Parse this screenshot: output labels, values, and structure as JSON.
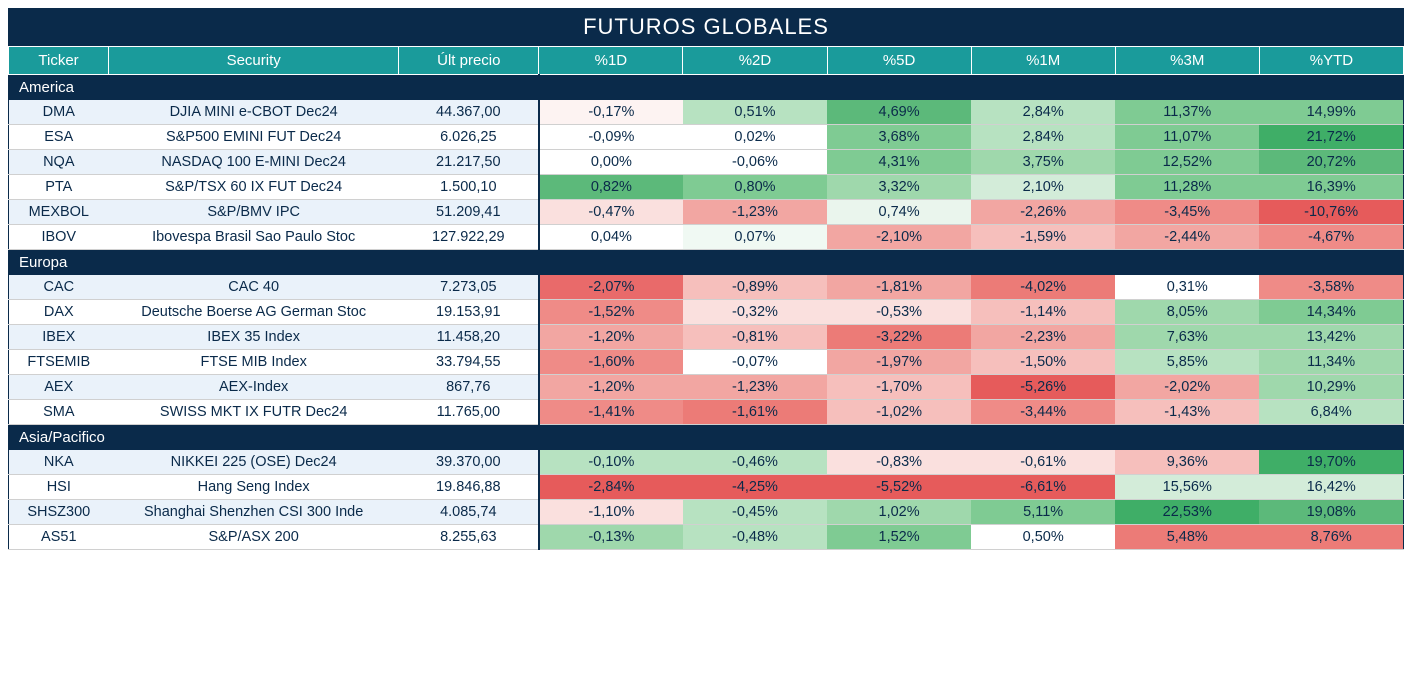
{
  "title": "FUTUROS GLOBALES",
  "headers": [
    "Ticker",
    "Security",
    "Últ precio",
    "%1D",
    "%2D",
    "%5D",
    "%1M",
    "%3M",
    "%YTD"
  ],
  "colors": {
    "title_bg": "#0a2a4a",
    "header_bg": "#1a9b9b",
    "alt_row_bg": "#eaf2fa",
    "text": "#0a2a4a",
    "heatmap": {
      "neg_strong": "#e96a6a",
      "neg_mid": "#f2a6a2",
      "neg_light": "#fae0de",
      "neg_vlight": "#fdf3f2",
      "neutral": "#ffffff",
      "pos_vlight": "#f0f9f3",
      "pos_light": "#d3ecd9",
      "pos_mid": "#9fd8ac",
      "pos_strong": "#5cb97a",
      "pos_vstrong": "#3fae67"
    }
  },
  "sections": [
    {
      "name": "America",
      "rows": [
        {
          "ticker": "DMA",
          "security": "DJIA MINI e-CBOT  Dec24",
          "price": "44.367,00",
          "pcts": [
            {
              "v": "-0,17%",
              "c": "#fdf3f2"
            },
            {
              "v": "0,51%",
              "c": "#b7e2c1"
            },
            {
              "v": "4,69%",
              "c": "#5cb97a"
            },
            {
              "v": "2,84%",
              "c": "#b7e2c1"
            },
            {
              "v": "11,37%",
              "c": "#7fcb93"
            },
            {
              "v": "14,99%",
              "c": "#7fcb93"
            }
          ]
        },
        {
          "ticker": "ESA",
          "security": "S&P500 EMINI FUT  Dec24",
          "price": "6.026,25",
          "pcts": [
            {
              "v": "-0,09%",
              "c": "#ffffff"
            },
            {
              "v": "0,02%",
              "c": "#ffffff"
            },
            {
              "v": "3,68%",
              "c": "#7fcb93"
            },
            {
              "v": "2,84%",
              "c": "#b7e2c1"
            },
            {
              "v": "11,07%",
              "c": "#7fcb93"
            },
            {
              "v": "21,72%",
              "c": "#3fae67"
            }
          ]
        },
        {
          "ticker": "NQA",
          "security": "NASDAQ 100 E-MINI Dec24",
          "price": "21.217,50",
          "pcts": [
            {
              "v": "0,00%",
              "c": "#ffffff"
            },
            {
              "v": "-0,06%",
              "c": "#ffffff"
            },
            {
              "v": "4,31%",
              "c": "#7fcb93"
            },
            {
              "v": "3,75%",
              "c": "#9fd8ac"
            },
            {
              "v": "12,52%",
              "c": "#7fcb93"
            },
            {
              "v": "20,72%",
              "c": "#5cb97a"
            }
          ]
        },
        {
          "ticker": "PTA",
          "security": "S&P/TSX 60 IX FUT Dec24",
          "price": "1.500,10",
          "pcts": [
            {
              "v": "0,82%",
              "c": "#5cb97a"
            },
            {
              "v": "0,80%",
              "c": "#7fcb93"
            },
            {
              "v": "3,32%",
              "c": "#9fd8ac"
            },
            {
              "v": "2,10%",
              "c": "#d3ecd9"
            },
            {
              "v": "11,28%",
              "c": "#7fcb93"
            },
            {
              "v": "16,39%",
              "c": "#7fcb93"
            }
          ]
        },
        {
          "ticker": "MEXBOL",
          "security": "S&P/BMV IPC",
          "price": "51.209,41",
          "pcts": [
            {
              "v": "-0,47%",
              "c": "#fae0de"
            },
            {
              "v": "-1,23%",
              "c": "#f2a6a2"
            },
            {
              "v": "0,74%",
              "c": "#eaf5ed"
            },
            {
              "v": "-2,26%",
              "c": "#f2a6a2"
            },
            {
              "v": "-3,45%",
              "c": "#ef8b87"
            },
            {
              "v": "-10,76%",
              "c": "#e65b5b"
            }
          ]
        },
        {
          "ticker": "IBOV",
          "security": "Ibovespa Brasil Sao Paulo Stoc",
          "price": "127.922,29",
          "pcts": [
            {
              "v": "0,04%",
              "c": "#ffffff"
            },
            {
              "v": "0,07%",
              "c": "#f0f9f3"
            },
            {
              "v": "-2,10%",
              "c": "#f2a6a2"
            },
            {
              "v": "-1,59%",
              "c": "#f6bfbc"
            },
            {
              "v": "-2,44%",
              "c": "#f2a6a2"
            },
            {
              "v": "-4,67%",
              "c": "#ef8b87"
            }
          ]
        }
      ]
    },
    {
      "name": "Europa",
      "rows": [
        {
          "ticker": "CAC",
          "security": "CAC 40",
          "price": "7.273,05",
          "pcts": [
            {
              "v": "-2,07%",
              "c": "#e96a6a"
            },
            {
              "v": "-0,89%",
              "c": "#f6bfbc"
            },
            {
              "v": "-1,81%",
              "c": "#f2a6a2"
            },
            {
              "v": "-4,02%",
              "c": "#ec7b77"
            },
            {
              "v": "0,31%",
              "c": "#ffffff"
            },
            {
              "v": "-3,58%",
              "c": "#ef8b87"
            }
          ]
        },
        {
          "ticker": "DAX",
          "security": "Deutsche Boerse AG German Stoc",
          "price": "19.153,91",
          "pcts": [
            {
              "v": "-1,52%",
              "c": "#ef8b87"
            },
            {
              "v": "-0,32%",
              "c": "#fae0de"
            },
            {
              "v": "-0,53%",
              "c": "#fae0de"
            },
            {
              "v": "-1,14%",
              "c": "#f6bfbc"
            },
            {
              "v": "8,05%",
              "c": "#9fd8ac"
            },
            {
              "v": "14,34%",
              "c": "#7fcb93"
            }
          ]
        },
        {
          "ticker": "IBEX",
          "security": "IBEX 35 Index",
          "price": "11.458,20",
          "pcts": [
            {
              "v": "-1,20%",
              "c": "#f2a6a2"
            },
            {
              "v": "-0,81%",
              "c": "#f6bfbc"
            },
            {
              "v": "-3,22%",
              "c": "#ec7b77"
            },
            {
              "v": "-2,23%",
              "c": "#f2a6a2"
            },
            {
              "v": "7,63%",
              "c": "#9fd8ac"
            },
            {
              "v": "13,42%",
              "c": "#9fd8ac"
            }
          ]
        },
        {
          "ticker": "FTSEMIB",
          "security": "FTSE MIB Index",
          "price": "33.794,55",
          "pcts": [
            {
              "v": "-1,60%",
              "c": "#ef8b87"
            },
            {
              "v": "-0,07%",
              "c": "#ffffff"
            },
            {
              "v": "-1,97%",
              "c": "#f2a6a2"
            },
            {
              "v": "-1,50%",
              "c": "#f6bfbc"
            },
            {
              "v": "5,85%",
              "c": "#b7e2c1"
            },
            {
              "v": "11,34%",
              "c": "#9fd8ac"
            }
          ]
        },
        {
          "ticker": "AEX",
          "security": "AEX-Index",
          "price": "867,76",
          "pcts": [
            {
              "v": "-1,20%",
              "c": "#f2a6a2"
            },
            {
              "v": "-1,23%",
              "c": "#f2a6a2"
            },
            {
              "v": "-1,70%",
              "c": "#f6bfbc"
            },
            {
              "v": "-5,26%",
              "c": "#e65b5b"
            },
            {
              "v": "-2,02%",
              "c": "#f2a6a2"
            },
            {
              "v": "10,29%",
              "c": "#9fd8ac"
            }
          ]
        },
        {
          "ticker": "SMA",
          "security": "SWISS MKT IX FUTR Dec24",
          "price": "11.765,00",
          "pcts": [
            {
              "v": "-1,41%",
              "c": "#ef8b87"
            },
            {
              "v": "-1,61%",
              "c": "#ec7b77"
            },
            {
              "v": "-1,02%",
              "c": "#f6bfbc"
            },
            {
              "v": "-3,44%",
              "c": "#ef8b87"
            },
            {
              "v": "-1,43%",
              "c": "#f6bfbc"
            },
            {
              "v": "6,84%",
              "c": "#b7e2c1"
            }
          ]
        }
      ]
    },
    {
      "name": "Asia/Pacifico",
      "rows": [
        {
          "ticker": "NKA",
          "security": "NIKKEI 225  (OSE) Dec24",
          "price": "39.370,00",
          "pcts": [
            {
              "v": "-0,10%",
              "c": "#b7e2c1"
            },
            {
              "v": "-0,46%",
              "c": "#b7e2c1"
            },
            {
              "v": "-0,83%",
              "c": "#fae0de"
            },
            {
              "v": "-0,61%",
              "c": "#fae0de"
            },
            {
              "v": "9,36%",
              "c": "#f6bfbc"
            },
            {
              "v": "19,70%",
              "c": "#3fae67"
            }
          ]
        },
        {
          "ticker": "HSI",
          "security": "Hang Seng Index",
          "price": "19.846,88",
          "pcts": [
            {
              "v": "-2,84%",
              "c": "#e65b5b"
            },
            {
              "v": "-4,25%",
              "c": "#e65b5b"
            },
            {
              "v": "-5,52%",
              "c": "#e65b5b"
            },
            {
              "v": "-6,61%",
              "c": "#e65b5b"
            },
            {
              "v": "15,56%",
              "c": "#d3ecd9"
            },
            {
              "v": "16,42%",
              "c": "#d3ecd9"
            }
          ]
        },
        {
          "ticker": "SHSZ300",
          "security": "Shanghai Shenzhen CSI 300 Inde",
          "price": "4.085,74",
          "pcts": [
            {
              "v": "-1,10%",
              "c": "#fae0de"
            },
            {
              "v": "-0,45%",
              "c": "#b7e2c1"
            },
            {
              "v": "1,02%",
              "c": "#9fd8ac"
            },
            {
              "v": "5,11%",
              "c": "#7fcb93"
            },
            {
              "v": "22,53%",
              "c": "#3fae67"
            },
            {
              "v": "19,08%",
              "c": "#5cb97a"
            }
          ]
        },
        {
          "ticker": "AS51",
          "security": "S&P/ASX 200",
          "price": "8.255,63",
          "pcts": [
            {
              "v": "-0,13%",
              "c": "#9fd8ac"
            },
            {
              "v": "-0,48%",
              "c": "#b7e2c1"
            },
            {
              "v": "1,52%",
              "c": "#7fcb93"
            },
            {
              "v": "0,50%",
              "c": "#ffffff"
            },
            {
              "v": "5,48%",
              "c": "#ec7b77"
            },
            {
              "v": "8,76%",
              "c": "#ec7b77"
            }
          ]
        }
      ]
    }
  ]
}
